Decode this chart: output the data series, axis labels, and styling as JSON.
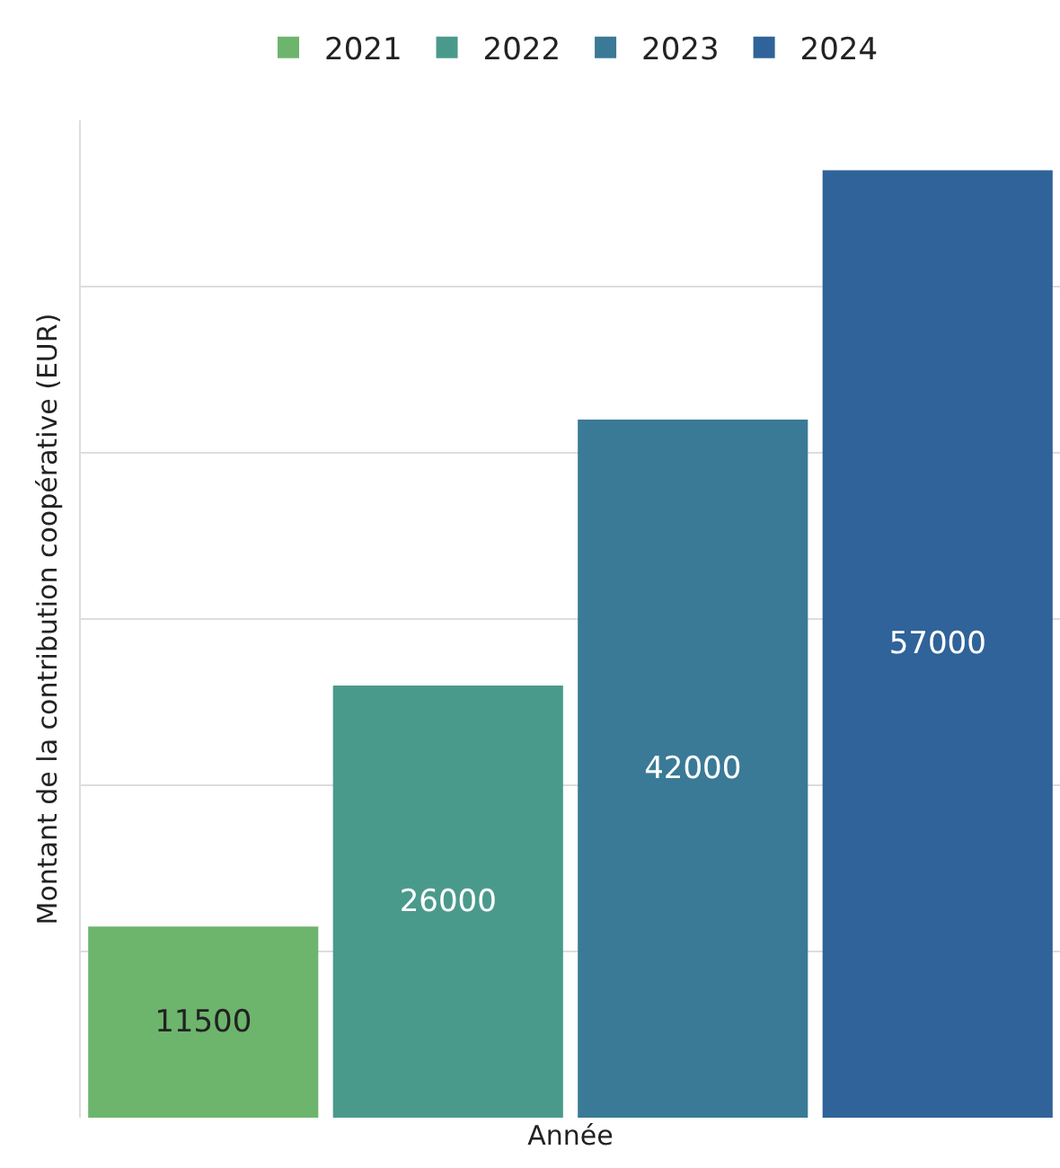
{
  "chart_data": {
    "type": "bar",
    "xlabel": "Année",
    "ylabel": "Montant de la contribution coopérative (EUR)",
    "categories": [
      null,
      null,
      null,
      null
    ],
    "stacked": true,
    "series": [
      {
        "name": "2021",
        "color": "#6db56d",
        "values": [
          11500,
          null,
          null,
          null
        ]
      },
      {
        "name": "2022",
        "color": "#4a9a8c",
        "values": [
          null,
          26000,
          null,
          null
        ]
      },
      {
        "name": "2023",
        "color": "#3a7a96",
        "values": [
          null,
          null,
          42000,
          null
        ]
      },
      {
        "name": "2024",
        "color": "#2f6399",
        "values": [
          null,
          null,
          null,
          57000
        ]
      }
    ],
    "tick_labels": false,
    "grid": "y",
    "legend": "top",
    "data_labels": true
  }
}
